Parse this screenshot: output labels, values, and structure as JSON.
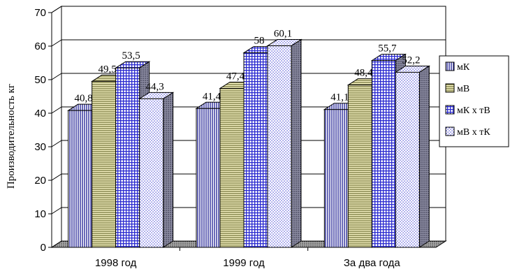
{
  "chart_data": {
    "type": "bar",
    "categories": [
      "1998 год",
      "1999 год",
      "За два года"
    ],
    "ylabel": "Производительность кг",
    "xlabel": "",
    "ylim": [
      0,
      70
    ],
    "yticks": [
      0,
      10,
      20,
      30,
      40,
      50,
      60,
      70
    ],
    "grid": true,
    "legend_position": "right",
    "series": [
      {
        "name": "мК",
        "values": [
          40.8,
          41.4,
          41.1
        ],
        "labels": [
          "40,8",
          "41,4",
          "41,1"
        ],
        "pattern": "vertical-lines",
        "color": "#2a2a9a"
      },
      {
        "name": "мВ",
        "values": [
          49.5,
          47.4,
          48.4
        ],
        "labels": [
          "49,5",
          "47,4",
          "48,4"
        ],
        "pattern": "horizontal-lines",
        "color": "#8a8a20"
      },
      {
        "name": "мК х тВ",
        "values": [
          53.5,
          58,
          55.7
        ],
        "labels": [
          "53,5",
          "58",
          "55,7"
        ],
        "pattern": "grid",
        "color": "#2a2ad0"
      },
      {
        "name": "мВ х тК",
        "values": [
          44.3,
          60.1,
          52.2
        ],
        "labels": [
          "44,3",
          "60,1",
          "52,2"
        ],
        "pattern": "dots",
        "color": "#2a2ad0"
      }
    ]
  }
}
